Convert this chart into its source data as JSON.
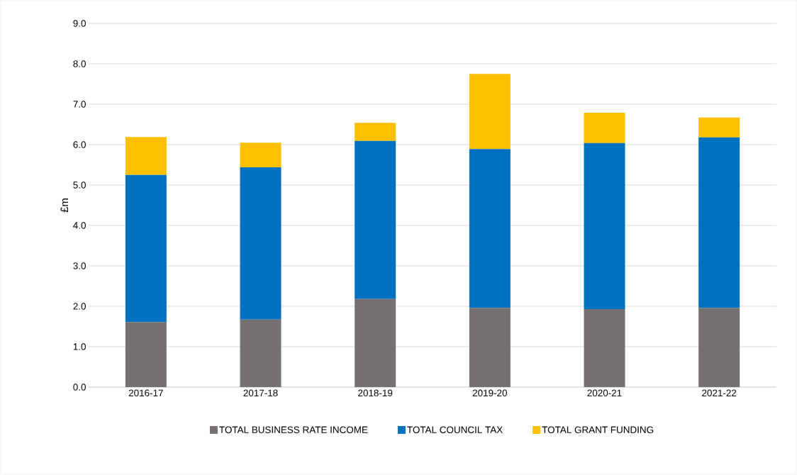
{
  "chart_data": {
    "type": "bar",
    "stacked": true,
    "ylabel": "£m",
    "categories": [
      "2016-17",
      "2017-18",
      "2018-19",
      "2019-20",
      "2020-21",
      "2021-22"
    ],
    "series": [
      {
        "name": "TOTAL BUSINESS RATE INCOME",
        "color": "#767171",
        "values": [
          1.61,
          1.67,
          2.18,
          1.96,
          1.93,
          1.96
        ]
      },
      {
        "name": "TOTAL COUNCIL TAX",
        "color": "#0070c0",
        "values": [
          3.64,
          3.77,
          3.91,
          3.93,
          4.11,
          4.22
        ]
      },
      {
        "name": "TOTAL GRANT FUNDING",
        "color": "#ffc000",
        "values": [
          0.94,
          0.61,
          0.45,
          1.86,
          0.75,
          0.49
        ]
      }
    ],
    "ylim": [
      0,
      9
    ],
    "yticks": [
      {
        "value": 0,
        "label": "0.0"
      },
      {
        "value": 1,
        "label": "1.0"
      },
      {
        "value": 2,
        "label": "2.0"
      },
      {
        "value": 3,
        "label": "3.0"
      },
      {
        "value": 4,
        "label": "4.0"
      },
      {
        "value": 5,
        "label": "5.0"
      },
      {
        "value": 6,
        "label": "6.0"
      },
      {
        "value": 7,
        "label": "7.0"
      },
      {
        "value": 8,
        "label": "8.0"
      },
      {
        "value": 9,
        "label": "9.0"
      }
    ],
    "grid": "y",
    "legend": "bottom"
  }
}
